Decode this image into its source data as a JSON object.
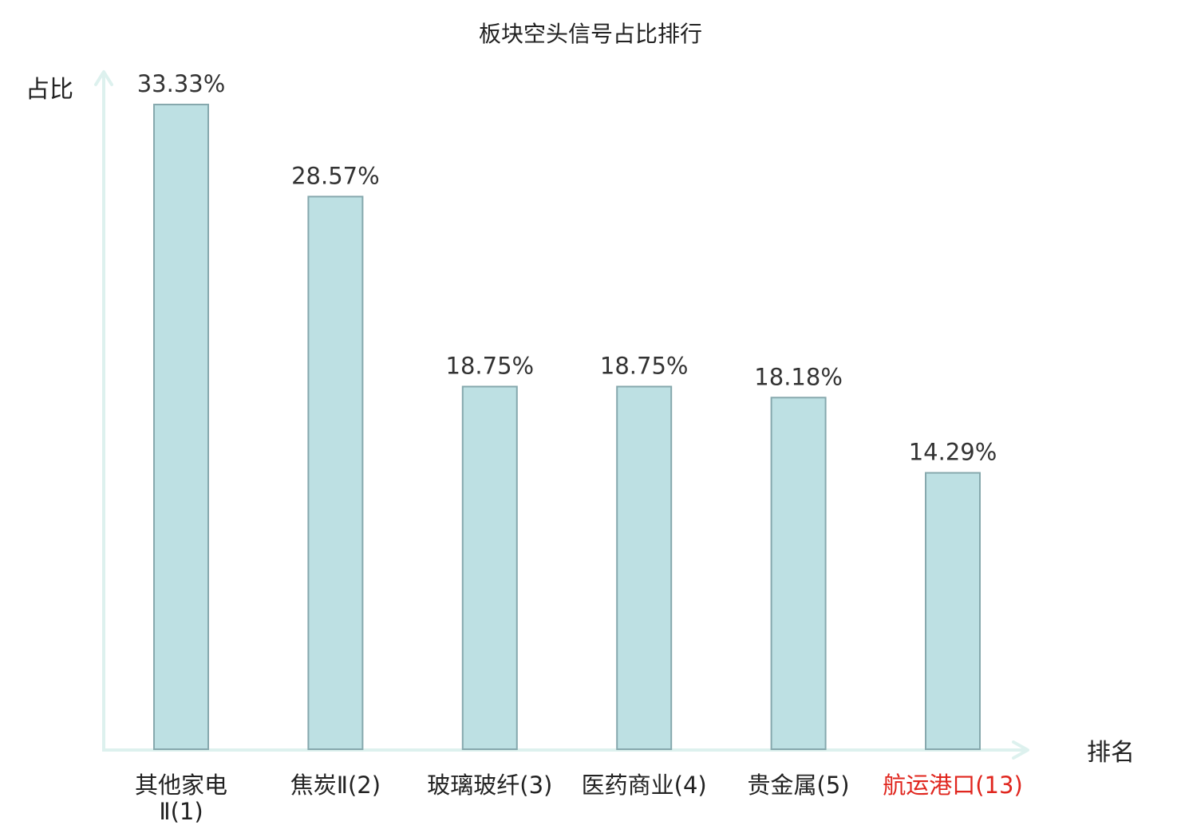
{
  "chart_data": {
    "type": "bar",
    "title": "板块空头信号占比排行",
    "ylabel": "占比",
    "xlabel": "排名",
    "categories": [
      "其他家电Ⅱ(1)",
      "焦炭Ⅱ(2)",
      "玻璃玻纤(3)",
      "医药商业(4)",
      "贵金属(5)",
      "航运港口(13)"
    ],
    "values": [
      33.33,
      28.57,
      18.75,
      18.75,
      18.18,
      14.29
    ],
    "value_labels": [
      "33.33%",
      "28.57%",
      "18.75%",
      "18.75%",
      "18.18%",
      "14.29%"
    ],
    "category_lines": [
      [
        "其他家电",
        "Ⅱ(1)"
      ],
      [
        "焦炭Ⅱ(2)"
      ],
      [
        "玻璃玻纤(3)"
      ],
      [
        "医药商业(4)"
      ],
      [
        "贵金属(5)"
      ],
      [
        "航运港口(13)"
      ]
    ],
    "highlight_index": 5,
    "ylim": [
      0,
      35
    ],
    "grid": false,
    "legend": "none",
    "colors": {
      "bar_fill": "#bde0e3",
      "bar_stroke": "#86a8ad",
      "axis": "#ddf1ee",
      "text": "#333333",
      "label": "#222222",
      "highlight": "#e0261e"
    }
  }
}
